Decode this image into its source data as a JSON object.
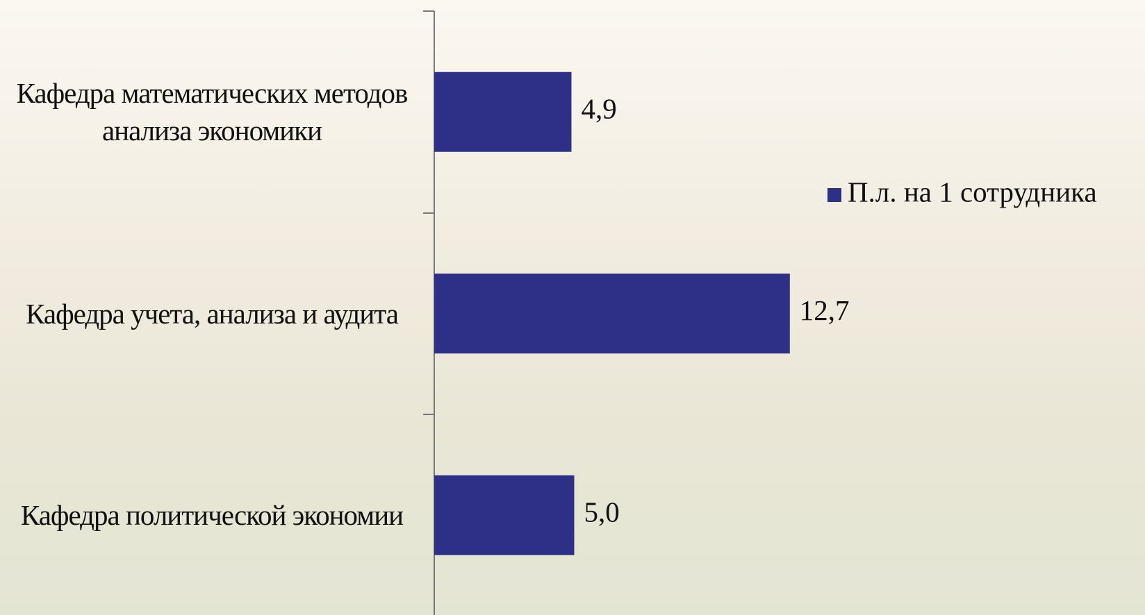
{
  "chart_data": {
    "type": "bar",
    "orientation": "horizontal",
    "categories": [
      "Кафедра математических методов анализа экономики",
      "Кафедра учета, анализа и аудита",
      "Кафедра политической экономии"
    ],
    "series": [
      {
        "name": "П.л. на 1 сотрудника",
        "color": "#2e3088",
        "values": [
          4.9,
          12.7,
          5.0
        ],
        "value_labels": [
          "4,9",
          "12,7",
          "5,0"
        ]
      }
    ],
    "legend": "right"
  }
}
